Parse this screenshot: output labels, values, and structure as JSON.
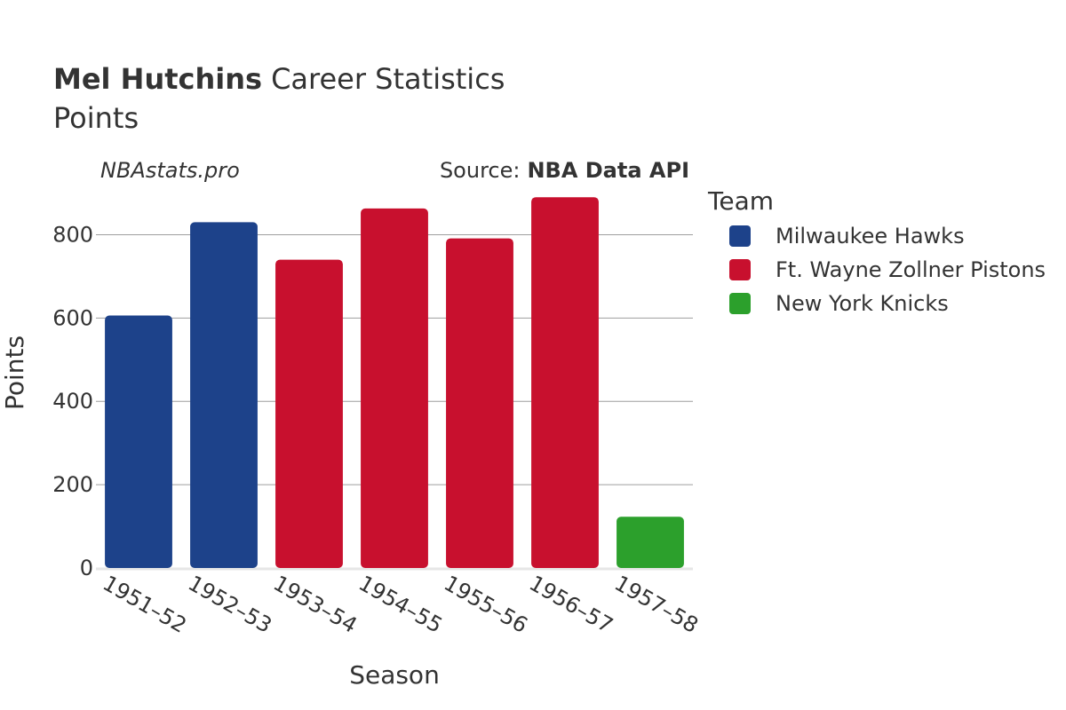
{
  "header": {
    "player_name": "Mel Hutchins",
    "title_suffix": "Career Statistics",
    "subtitle": "Points",
    "site_credit": "NBAstats.pro",
    "source_prefix": "Source:",
    "source_name": "NBA Data API"
  },
  "legend": {
    "title": "Team",
    "items": [
      {
        "label": "Milwaukee Hawks",
        "color": "#1d428a"
      },
      {
        "label": "Ft. Wayne Zollner Pistons",
        "color": "#c8102e"
      },
      {
        "label": "New York Knicks",
        "color": "#2ca02c"
      }
    ]
  },
  "chart_data": {
    "type": "bar",
    "title": "Mel Hutchins Career Statistics",
    "subtitle": "Points",
    "xlabel": "Season",
    "ylabel": "Points",
    "ylim": [
      0,
      900
    ],
    "yticks": [
      0,
      200,
      400,
      600,
      800
    ],
    "grid": true,
    "legend_position": "right",
    "categories": [
      "1951–52",
      "1952–53",
      "1953–54",
      "1954–55",
      "1955–56",
      "1956–57",
      "1957–58"
    ],
    "values": [
      606,
      830,
      740,
      863,
      791,
      890,
      123
    ],
    "teams": [
      "Milwaukee Hawks",
      "Milwaukee Hawks",
      "Ft. Wayne Zollner Pistons",
      "Ft. Wayne Zollner Pistons",
      "Ft. Wayne Zollner Pistons",
      "Ft. Wayne Zollner Pistons",
      "New York Knicks"
    ]
  }
}
